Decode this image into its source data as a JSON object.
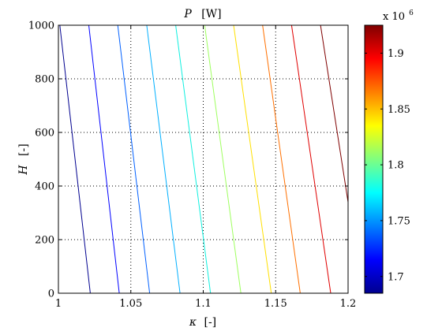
{
  "chart_data": {
    "type": "contour",
    "title": "P  [W]",
    "title_symbol": "P",
    "title_unit": "[W]",
    "xlabel_symbol": "κ",
    "xlabel_unit": "[-]",
    "ylabel_symbol": "H",
    "ylabel_unit": "[-]",
    "xlim": [
      1,
      1.2
    ],
    "ylim": [
      0,
      1000
    ],
    "x_ticks": [
      "1",
      "1.05",
      "1.1",
      "1.15",
      "1.2"
    ],
    "x_tick_values": [
      1,
      1.05,
      1.1,
      1.15,
      1.2
    ],
    "y_ticks": [
      "0",
      "200",
      "400",
      "600",
      "800",
      "1000"
    ],
    "y_tick_values": [
      0,
      200,
      400,
      600,
      800,
      1000
    ],
    "grid": "dotted",
    "colormap": "jet",
    "colorbar": {
      "range": [
        1.685,
        1.925
      ],
      "ticks": [
        "1.7",
        "1.75",
        "1.8",
        "1.85",
        "1.9"
      ],
      "tick_values": [
        1.7,
        1.75,
        1.8,
        1.85,
        1.9
      ],
      "exponent_label": "x 10",
      "exponent": "6"
    },
    "contours": [
      {
        "color": "#00008f",
        "points": [
          [
            1.001,
            1000
          ],
          [
            1.022,
            0
          ]
        ]
      },
      {
        "color": "#0000ff",
        "points": [
          [
            1.021,
            1000
          ],
          [
            1.042,
            0
          ]
        ]
      },
      {
        "color": "#0060ff",
        "points": [
          [
            1.041,
            1000
          ],
          [
            1.063,
            0
          ]
        ]
      },
      {
        "color": "#00b0ff",
        "points": [
          [
            1.061,
            1000
          ],
          [
            1.084,
            0
          ]
        ]
      },
      {
        "color": "#10f0e0",
        "points": [
          [
            1.081,
            1000
          ],
          [
            1.105,
            0
          ]
        ]
      },
      {
        "color": "#9fff60",
        "points": [
          [
            1.101,
            1000
          ],
          [
            1.126,
            0
          ]
        ]
      },
      {
        "color": "#ffe000",
        "points": [
          [
            1.121,
            1000
          ],
          [
            1.147,
            0
          ]
        ]
      },
      {
        "color": "#ff7000",
        "points": [
          [
            1.141,
            1000
          ],
          [
            1.167,
            0
          ]
        ]
      },
      {
        "color": "#e00000",
        "points": [
          [
            1.161,
            1000
          ],
          [
            1.188,
            0
          ]
        ]
      },
      {
        "color": "#800000",
        "points": [
          [
            1.181,
            1000
          ],
          [
            1.2,
            340
          ]
        ]
      }
    ]
  }
}
